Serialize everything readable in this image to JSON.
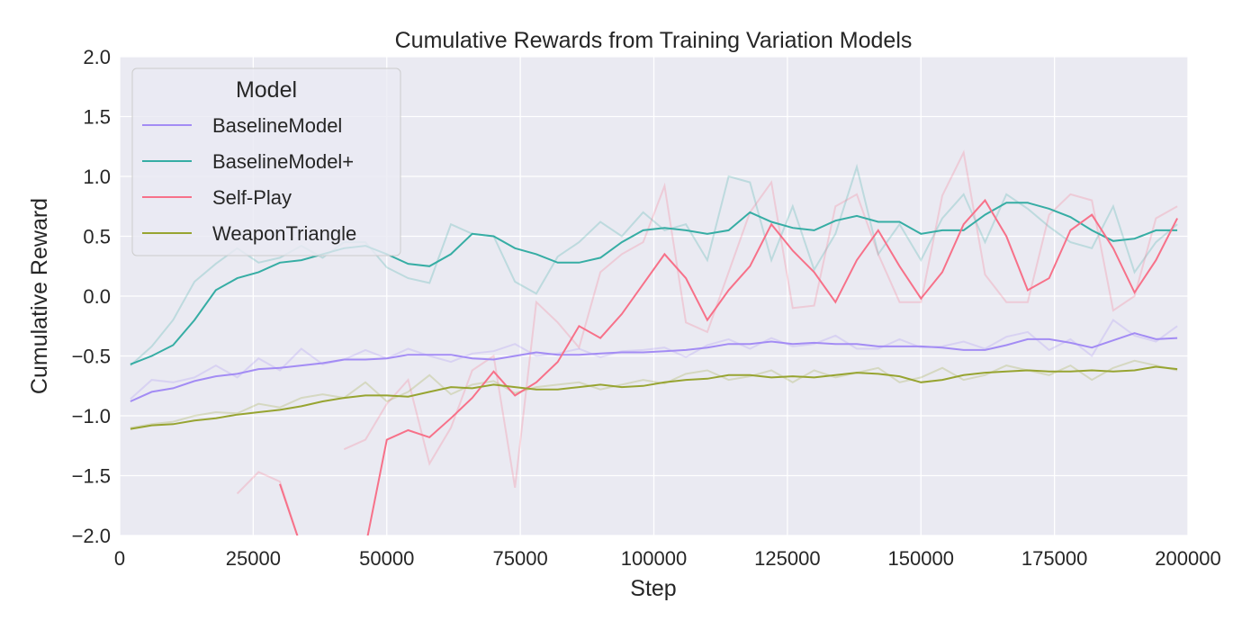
{
  "chart_data": {
    "type": "line",
    "title": "Cumulative Rewards from Training Variation Models",
    "xlabel": "Step",
    "ylabel": "Cumulative Reward",
    "xlim": [
      0,
      200000
    ],
    "ylim": [
      -2.0,
      2.0
    ],
    "xticks": [
      "0",
      "25000",
      "50000",
      "75000",
      "100000",
      "125000",
      "150000",
      "175000",
      "200000"
    ],
    "yticks": [
      "−2.0",
      "−1.5",
      "−1.0",
      "−0.5",
      "0.0",
      "0.5",
      "1.0",
      "1.5",
      "2.0"
    ],
    "grid": true,
    "legend": {
      "title": "Model",
      "placement": "top-left"
    },
    "x": [
      2000,
      6000,
      10000,
      14000,
      18000,
      22000,
      26000,
      30000,
      34000,
      38000,
      42000,
      46000,
      50000,
      54000,
      58000,
      62000,
      66000,
      70000,
      74000,
      78000,
      82000,
      86000,
      90000,
      94000,
      98000,
      102000,
      106000,
      110000,
      114000,
      118000,
      122000,
      126000,
      130000,
      134000,
      138000,
      142000,
      146000,
      150000,
      154000,
      158000,
      162000,
      166000,
      170000,
      174000,
      178000,
      182000,
      186000,
      190000,
      194000,
      198000
    ],
    "series": [
      {
        "name": "BaselineModel",
        "color": "#a38cf4",
        "smoothed": [
          -0.88,
          -0.8,
          -0.77,
          -0.71,
          -0.67,
          -0.65,
          -0.61,
          -0.6,
          -0.58,
          -0.56,
          -0.53,
          -0.53,
          -0.52,
          -0.49,
          -0.49,
          -0.49,
          -0.52,
          -0.53,
          -0.5,
          -0.47,
          -0.49,
          -0.49,
          -0.48,
          -0.47,
          -0.47,
          -0.46,
          -0.45,
          -0.43,
          -0.4,
          -0.4,
          -0.38,
          -0.4,
          -0.39,
          -0.4,
          -0.4,
          -0.42,
          -0.42,
          -0.42,
          -0.43,
          -0.45,
          -0.45,
          -0.41,
          -0.36,
          -0.36,
          -0.39,
          -0.43,
          -0.37,
          -0.31,
          -0.36,
          -0.35
        ],
        "raw": [
          -0.86,
          -0.7,
          -0.72,
          -0.68,
          -0.58,
          -0.68,
          -0.52,
          -0.62,
          -0.44,
          -0.57,
          -0.53,
          -0.45,
          -0.52,
          -0.44,
          -0.5,
          -0.55,
          -0.48,
          -0.46,
          -0.4,
          -0.5,
          -0.48,
          -0.44,
          -0.51,
          -0.46,
          -0.45,
          -0.43,
          -0.51,
          -0.41,
          -0.36,
          -0.44,
          -0.35,
          -0.42,
          -0.4,
          -0.33,
          -0.44,
          -0.44,
          -0.36,
          -0.43,
          -0.42,
          -0.38,
          -0.44,
          -0.34,
          -0.3,
          -0.45,
          -0.36,
          -0.5,
          -0.2,
          -0.33,
          -0.38,
          -0.25
        ]
      },
      {
        "name": "BaselineModel+",
        "color": "#36ada4",
        "smoothed": [
          -0.57,
          -0.5,
          -0.41,
          -0.2,
          0.05,
          0.15,
          0.2,
          0.28,
          0.3,
          0.35,
          0.4,
          0.42,
          0.35,
          0.27,
          0.25,
          0.35,
          0.52,
          0.5,
          0.4,
          0.35,
          0.28,
          0.28,
          0.32,
          0.45,
          0.55,
          0.57,
          0.55,
          0.52,
          0.55,
          0.7,
          0.62,
          0.57,
          0.55,
          0.63,
          0.67,
          0.62,
          0.62,
          0.52,
          0.55,
          0.55,
          0.68,
          0.78,
          0.78,
          0.73,
          0.66,
          0.55,
          0.46,
          0.48,
          0.55,
          0.55
        ],
        "raw": [
          -0.58,
          -0.42,
          -0.2,
          0.12,
          0.27,
          0.4,
          0.28,
          0.32,
          0.42,
          0.32,
          0.45,
          0.45,
          0.24,
          0.15,
          0.11,
          0.6,
          0.52,
          0.5,
          0.12,
          0.02,
          0.33,
          0.45,
          0.62,
          0.5,
          0.7,
          0.55,
          0.6,
          0.3,
          1.0,
          0.95,
          0.3,
          0.75,
          0.22,
          0.52,
          1.08,
          0.35,
          0.6,
          0.3,
          0.65,
          0.85,
          0.45,
          0.85,
          0.73,
          0.58,
          0.45,
          0.4,
          0.75,
          0.2,
          0.45,
          0.6
        ]
      },
      {
        "name": "Self-Play",
        "color": "#f77189",
        "smoothed": [
          null,
          null,
          null,
          null,
          null,
          null,
          null,
          -1.57,
          -2.1,
          null,
          null,
          -2.1,
          -1.2,
          -1.12,
          -1.18,
          -1.02,
          -0.85,
          -0.63,
          -0.83,
          -0.72,
          -0.55,
          -0.25,
          -0.35,
          -0.15,
          0.1,
          0.35,
          0.15,
          -0.2,
          0.05,
          0.25,
          0.6,
          0.38,
          0.2,
          -0.05,
          0.3,
          0.55,
          0.25,
          -0.02,
          0.2,
          0.6,
          0.8,
          0.5,
          0.05,
          0.15,
          0.55,
          0.68,
          0.4,
          0.03,
          0.3,
          0.65
        ],
        "raw": [
          null,
          null,
          null,
          null,
          null,
          -1.65,
          -1.47,
          -1.55,
          -2.1,
          null,
          -1.28,
          -1.2,
          -0.9,
          -0.7,
          -1.4,
          -1.1,
          -0.62,
          -0.5,
          -1.6,
          -0.05,
          -0.22,
          -0.43,
          0.2,
          0.35,
          0.45,
          0.92,
          -0.22,
          -0.3,
          0.2,
          0.7,
          0.95,
          -0.1,
          -0.08,
          0.75,
          0.85,
          0.35,
          -0.05,
          -0.05,
          0.84,
          1.2,
          0.18,
          -0.05,
          -0.05,
          0.68,
          0.85,
          0.8,
          -0.12,
          0.0,
          0.65,
          0.75
        ]
      },
      {
        "name": "WeaponTriangle",
        "color": "#97a431",
        "smoothed": [
          -1.11,
          -1.08,
          -1.07,
          -1.04,
          -1.02,
          -0.99,
          -0.97,
          -0.95,
          -0.92,
          -0.88,
          -0.85,
          -0.83,
          -0.83,
          -0.84,
          -0.8,
          -0.76,
          -0.77,
          -0.74,
          -0.76,
          -0.78,
          -0.78,
          -0.76,
          -0.74,
          -0.76,
          -0.75,
          -0.72,
          -0.7,
          -0.69,
          -0.66,
          -0.66,
          -0.68,
          -0.67,
          -0.68,
          -0.66,
          -0.64,
          -0.65,
          -0.67,
          -0.72,
          -0.7,
          -0.66,
          -0.64,
          -0.63,
          -0.62,
          -0.63,
          -0.63,
          -0.62,
          -0.63,
          -0.62,
          -0.59,
          -0.61
        ],
        "raw": [
          -1.1,
          -1.07,
          -1.05,
          -1.0,
          -0.97,
          -0.98,
          -0.9,
          -0.93,
          -0.85,
          -0.82,
          -0.85,
          -0.72,
          -0.88,
          -0.8,
          -0.66,
          -0.82,
          -0.74,
          -0.71,
          -0.81,
          -0.76,
          -0.74,
          -0.72,
          -0.78,
          -0.74,
          -0.7,
          -0.73,
          -0.65,
          -0.62,
          -0.7,
          -0.67,
          -0.62,
          -0.72,
          -0.62,
          -0.68,
          -0.64,
          -0.6,
          -0.72,
          -0.68,
          -0.6,
          -0.7,
          -0.66,
          -0.58,
          -0.62,
          -0.66,
          -0.58,
          -0.7,
          -0.6,
          -0.54,
          -0.58,
          -0.62
        ]
      }
    ]
  }
}
